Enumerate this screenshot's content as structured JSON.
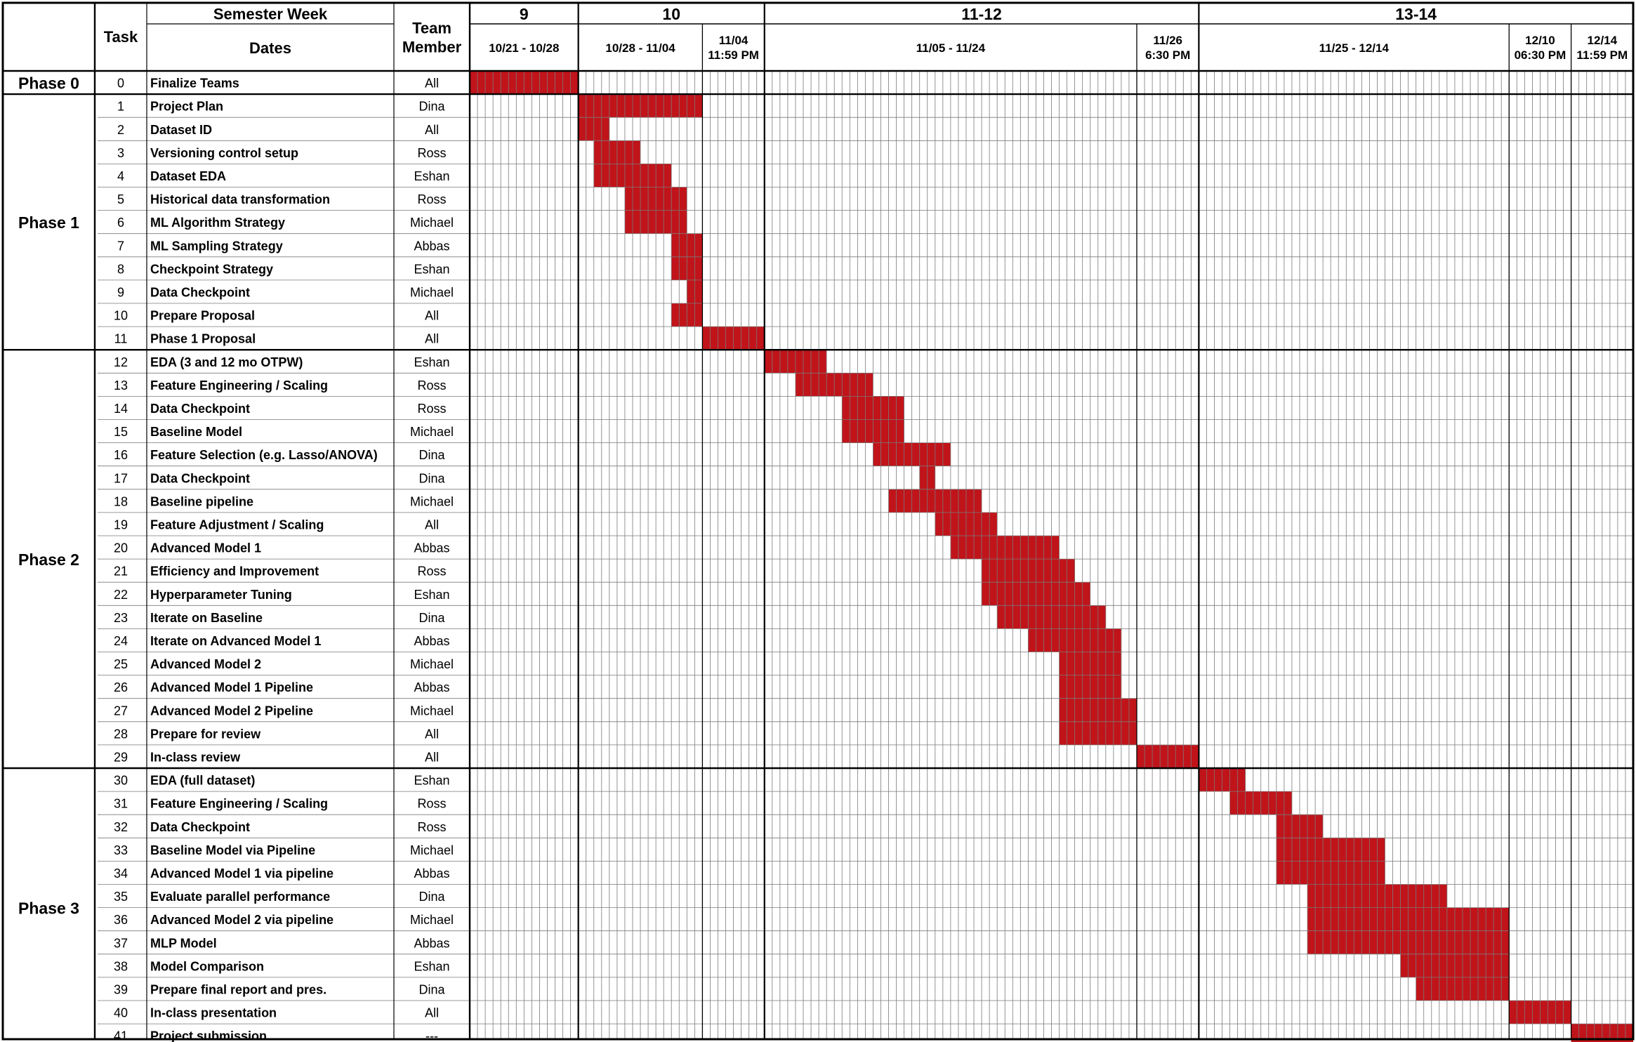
{
  "header": {
    "semester_week_label": "Semester Week",
    "dates_label": "Dates",
    "task_label": "Task",
    "team_member_label": [
      "Team",
      "Member"
    ]
  },
  "timeline": {
    "cols_per_day": 2,
    "weeks": [
      {
        "label": "9",
        "start": 0,
        "end": 14
      },
      {
        "label": "10",
        "start": 14,
        "end": 38
      },
      {
        "label": "11-12",
        "start": 38,
        "end": 94
      },
      {
        "label": "13-14",
        "start": 94,
        "end": 150
      }
    ],
    "date_groups": [
      {
        "label": [
          "10/21 - 10/28"
        ],
        "start": 0,
        "end": 14
      },
      {
        "label": [
          "10/28 - 11/04"
        ],
        "start": 14,
        "end": 30
      },
      {
        "label": [
          "11/04",
          "11:59 PM"
        ],
        "start": 30,
        "end": 38
      },
      {
        "label": [
          "11/05 - 11/24"
        ],
        "start": 38,
        "end": 86
      },
      {
        "label": [
          "11/26",
          "6:30 PM"
        ],
        "start": 86,
        "end": 94
      },
      {
        "label": [
          "11/25 - 12/14"
        ],
        "start": 94,
        "end": 134
      },
      {
        "label": [
          "12/10",
          "06:30 PM"
        ],
        "start": 134,
        "end": 142
      },
      {
        "label": [
          "12/14",
          "11:59 PM"
        ],
        "start": 142,
        "end": 150
      }
    ]
  },
  "chart_data": {
    "type": "gantt",
    "phases": [
      {
        "name": "Phase 0",
        "tasks": [
          {
            "id": "0",
            "name": "Finalize Teams",
            "member": "All",
            "start": 0,
            "end": 14
          }
        ]
      },
      {
        "name": "Phase 1",
        "tasks": [
          {
            "id": "1",
            "name": "Project Plan",
            "member": "Dina",
            "start": 14,
            "end": 30
          },
          {
            "id": "2",
            "name": "Dataset ID",
            "member": "All",
            "start": 14,
            "end": 18
          },
          {
            "id": "3",
            "name": "Versioning control setup",
            "member": "Ross",
            "start": 16,
            "end": 22
          },
          {
            "id": "4",
            "name": "Dataset EDA",
            "member": "Eshan",
            "start": 16,
            "end": 26
          },
          {
            "id": "5",
            "name": "Historical data transformation",
            "member": "Ross",
            "start": 20,
            "end": 28
          },
          {
            "id": "6",
            "name": "ML Algorithm Strategy",
            "member": "Michael",
            "start": 20,
            "end": 28
          },
          {
            "id": "7",
            "name": "ML Sampling Strategy",
            "member": "Abbas",
            "start": 26,
            "end": 30
          },
          {
            "id": "8",
            "name": "Checkpoint Strategy",
            "member": "Eshan",
            "start": 26,
            "end": 30
          },
          {
            "id": "9",
            "name": "Data Checkpoint",
            "member": "Michael",
            "start": 28,
            "end": 30
          },
          {
            "id": "10",
            "name": "Prepare Proposal",
            "member": "All",
            "start": 26,
            "end": 30
          },
          {
            "id": "11",
            "name": "Phase 1 Proposal",
            "member": "All",
            "start": 30,
            "end": 38
          }
        ]
      },
      {
        "name": "Phase 2",
        "tasks": [
          {
            "id": "12",
            "name": "EDA (3 and 12 mo OTPW)",
            "member": "Eshan",
            "start": 38,
            "end": 46
          },
          {
            "id": "13",
            "name": "Feature Engineering / Scaling",
            "member": "Ross",
            "start": 42,
            "end": 52
          },
          {
            "id": "14",
            "name": "Data Checkpoint",
            "member": "Ross",
            "start": 48,
            "end": 56
          },
          {
            "id": "15",
            "name": "Baseline Model",
            "member": "Michael",
            "start": 48,
            "end": 56
          },
          {
            "id": "16",
            "name": "Feature Selection (e.g. Lasso/ANOVA)",
            "member": "Dina",
            "start": 52,
            "end": 62
          },
          {
            "id": "17",
            "name": "Data Checkpoint",
            "member": "Dina",
            "start": 58,
            "end": 60
          },
          {
            "id": "18",
            "name": "Baseline pipeline",
            "member": "Michael",
            "start": 54,
            "end": 66
          },
          {
            "id": "19",
            "name": "Feature Adjustment / Scaling",
            "member": "All",
            "start": 60,
            "end": 68
          },
          {
            "id": "20",
            "name": "Advanced Model 1",
            "member": "Abbas",
            "start": 62,
            "end": 76
          },
          {
            "id": "21",
            "name": "Efficiency and Improvement",
            "member": "Ross",
            "start": 66,
            "end": 78
          },
          {
            "id": "22",
            "name": "Hyperparameter Tuning",
            "member": "Eshan",
            "start": 66,
            "end": 80
          },
          {
            "id": "23",
            "name": "Iterate on Baseline",
            "member": "Dina",
            "start": 68,
            "end": 82
          },
          {
            "id": "24",
            "name": "Iterate on Advanced Model 1",
            "member": "Abbas",
            "start": 72,
            "end": 84
          },
          {
            "id": "25",
            "name": "Advanced Model 2",
            "member": "Michael",
            "start": 76,
            "end": 84
          },
          {
            "id": "26",
            "name": "Advanced Model 1 Pipeline",
            "member": "Abbas",
            "start": 76,
            "end": 84
          },
          {
            "id": "27",
            "name": "Advanced Model 2 Pipeline",
            "member": "Michael",
            "start": 76,
            "end": 86
          },
          {
            "id": "28",
            "name": "Prepare for review",
            "member": "All",
            "start": 76,
            "end": 86
          },
          {
            "id": "29",
            "name": "In-class review",
            "member": "All",
            "start": 86,
            "end": 94
          }
        ]
      },
      {
        "name": "Phase 3",
        "tasks": [
          {
            "id": "30",
            "name": "EDA (full dataset)",
            "member": "Eshan",
            "start": 94,
            "end": 100
          },
          {
            "id": "31",
            "name": "Feature Engineering / Scaling",
            "member": "Ross",
            "start": 98,
            "end": 106
          },
          {
            "id": "32",
            "name": "Data Checkpoint",
            "member": "Ross",
            "start": 104,
            "end": 110
          },
          {
            "id": "33",
            "name": "Baseline Model via Pipeline",
            "member": "Michael",
            "start": 104,
            "end": 118
          },
          {
            "id": "34",
            "name": "Advanced Model 1 via pipeline",
            "member": "Abbas",
            "start": 104,
            "end": 118
          },
          {
            "id": "35",
            "name": "Evaluate parallel performance",
            "member": "Dina",
            "start": 108,
            "end": 126
          },
          {
            "id": "36",
            "name": "Advanced Model 2 via pipeline",
            "member": "Michael",
            "start": 108,
            "end": 134
          },
          {
            "id": "37",
            "name": "MLP Model",
            "member": "Abbas",
            "start": 108,
            "end": 134
          },
          {
            "id": "38",
            "name": "Model Comparison",
            "member": "Eshan",
            "start": 120,
            "end": 134
          },
          {
            "id": "39",
            "name": "Prepare final report and pres.",
            "member": "Dina",
            "start": 122,
            "end": 134
          },
          {
            "id": "40",
            "name": "In-class presentation",
            "member": "All",
            "start": 134,
            "end": 142
          },
          {
            "id": "41",
            "name": "Project submission",
            "member": "---",
            "start": 142,
            "end": 150
          }
        ]
      }
    ]
  },
  "colors": {
    "bar": "#c0141a",
    "grid": "#7a7a7a",
    "border": "#000000",
    "background": "#ffffff"
  }
}
